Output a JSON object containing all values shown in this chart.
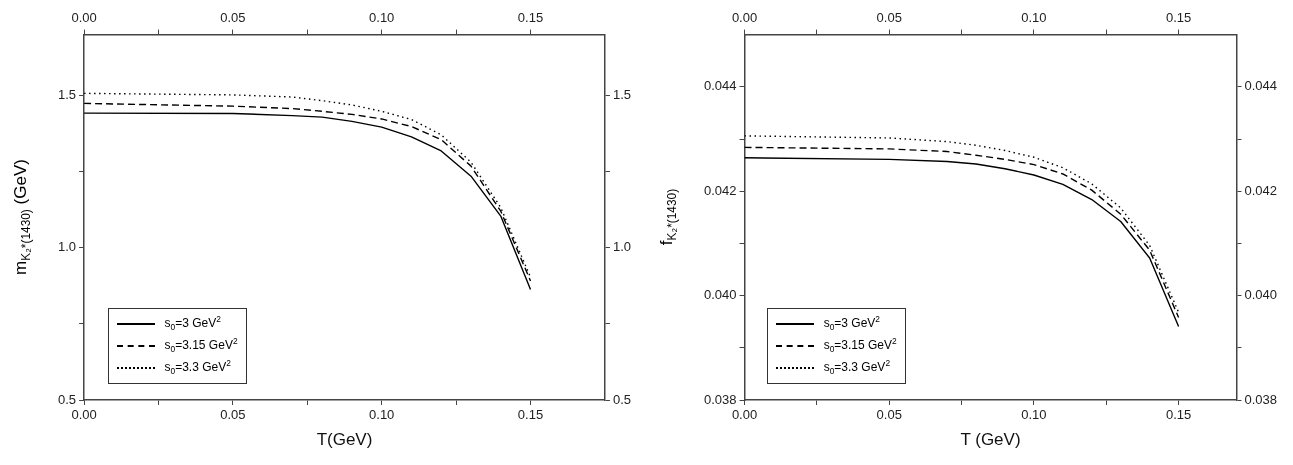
{
  "chart_data": [
    {
      "type": "line",
      "xlabel": "T(GeV)",
      "ylabel": "m$_{K₂*(1430)}$ (GeV)",
      "x": [
        0,
        0.05,
        0.07,
        0.08,
        0.09,
        0.1,
        0.11,
        0.12,
        0.13,
        0.14,
        0.15
      ],
      "xlim": [
        0,
        0.175
      ],
      "xticks": [
        {
          "value": 0,
          "label": "0.00"
        },
        {
          "value": 0.025,
          "label": null
        },
        {
          "value": 0.05,
          "label": "0.05"
        },
        {
          "value": 0.075,
          "label": null
        },
        {
          "value": 0.1,
          "label": "0.10"
        },
        {
          "value": 0.125,
          "label": null
        },
        {
          "value": 0.15,
          "label": "0.15"
        }
      ],
      "x2lim": [
        0,
        0.175
      ],
      "x2ticks": [
        {
          "value": 0,
          "label": "0.00"
        },
        {
          "value": 0.025,
          "label": null
        },
        {
          "value": 0.05,
          "label": "0.05"
        },
        {
          "value": 0.075,
          "label": null
        },
        {
          "value": 0.1,
          "label": "0.10"
        },
        {
          "value": 0.125,
          "label": null
        },
        {
          "value": 0.15,
          "label": "0.15"
        }
      ],
      "ylim": [
        0.5,
        1.7
      ],
      "yticks": [
        {
          "value": 0.5,
          "label": "0.5"
        },
        {
          "value": 0.75,
          "label": null
        },
        {
          "value": 1.0,
          "label": "1.0"
        },
        {
          "value": 1.25,
          "label": null
        },
        {
          "value": 1.5,
          "label": "1.5"
        }
      ],
      "y2lim": [
        0.5,
        1.7
      ],
      "y2ticks": [
        {
          "value": 0.5,
          "label": "0.5"
        },
        {
          "value": 0.75,
          "label": null
        },
        {
          "value": 1.0,
          "label": "1.0"
        },
        {
          "value": 1.25,
          "label": null
        },
        {
          "value": 1.5,
          "label": "1.5"
        }
      ],
      "legend": "bottom left",
      "marker": "none",
      "series": [
        {
          "name": "s$_{0}$=3 GeV$^{2}$",
          "color": "#000000",
          "line_style": "solid",
          "values": [
            1.442,
            1.441,
            1.434,
            1.429,
            1.415,
            1.396,
            1.364,
            1.318,
            1.235,
            1.104,
            0.863
          ]
        },
        {
          "name": "s$_{0}$=3.15 GeV$^{2}$",
          "color": "#000000",
          "line_style": "dashed",
          "values": [
            1.474,
            1.465,
            1.457,
            1.448,
            1.438,
            1.423,
            1.398,
            1.355,
            1.268,
            1.12,
            0.891
          ]
        },
        {
          "name": "s$_{0}$=3.3 GeV$^{2}$",
          "color": "#000000",
          "line_style": "dotted",
          "values": [
            1.507,
            1.502,
            1.495,
            1.483,
            1.469,
            1.448,
            1.421,
            1.371,
            1.281,
            1.132,
            0.903
          ]
        }
      ]
    },
    {
      "type": "line",
      "xlabel": "T (GeV)",
      "ylabel": "f$_{K₂*(1430)}$",
      "x": [
        0,
        0.05,
        0.07,
        0.08,
        0.09,
        0.1,
        0.11,
        0.12,
        0.13,
        0.14,
        0.15
      ],
      "xlim": [
        0,
        0.17
      ],
      "xticks": [
        {
          "value": 0,
          "label": "0.00"
        },
        {
          "value": 0.025,
          "label": null
        },
        {
          "value": 0.05,
          "label": "0.05"
        },
        {
          "value": 0.075,
          "label": null
        },
        {
          "value": 0.1,
          "label": "0.10"
        },
        {
          "value": 0.125,
          "label": null
        },
        {
          "value": 0.15,
          "label": "0.15"
        }
      ],
      "x2lim": [
        0,
        0.17
      ],
      "x2ticks": [
        {
          "value": 0,
          "label": "0.00"
        },
        {
          "value": 0.025,
          "label": null
        },
        {
          "value": 0.05,
          "label": "0.05"
        },
        {
          "value": 0.075,
          "label": null
        },
        {
          "value": 0.1,
          "label": "0.10"
        },
        {
          "value": 0.125,
          "label": null
        },
        {
          "value": 0.15,
          "label": "0.15"
        }
      ],
      "ylim": [
        0.038,
        0.045
      ],
      "yticks": [
        {
          "value": 0.038,
          "label": "0.038"
        },
        {
          "value": 0.039,
          "label": null
        },
        {
          "value": 0.04,
          "label": "0.040"
        },
        {
          "value": 0.041,
          "label": null
        },
        {
          "value": 0.042,
          "label": "0.042"
        },
        {
          "value": 0.043,
          "label": null
        },
        {
          "value": 0.044,
          "label": "0.044"
        }
      ],
      "y2lim": [
        0.038,
        0.045
      ],
      "y2ticks": [
        {
          "value": 0.038,
          "label": "0.038"
        },
        {
          "value": 0.039,
          "label": null
        },
        {
          "value": 0.04,
          "label": "0.040"
        },
        {
          "value": 0.041,
          "label": null
        },
        {
          "value": 0.042,
          "label": "0.042"
        },
        {
          "value": 0.043,
          "label": null
        },
        {
          "value": 0.044,
          "label": "0.044"
        }
      ],
      "legend": "bottom left",
      "marker": "none",
      "series": [
        {
          "name": "s$_{0}$=3 GeV$^{2}$",
          "color": "#000000",
          "line_style": "solid",
          "values": [
            0.04264,
            0.04261,
            0.04257,
            0.04252,
            0.04243,
            0.04231,
            0.04213,
            0.04184,
            0.04142,
            0.04072,
            0.03941
          ]
        },
        {
          "name": "s$_{0}$=3.15 GeV$^{2}$",
          "color": "#000000",
          "line_style": "dashed",
          "values": [
            0.04284,
            0.04281,
            0.04276,
            0.04269,
            0.04261,
            0.04251,
            0.04233,
            0.04202,
            0.04156,
            0.04087,
            0.03958
          ]
        },
        {
          "name": "s$_{0}$=3.3 GeV$^{2}$",
          "color": "#000000",
          "line_style": "dotted",
          "values": [
            0.04306,
            0.04302,
            0.04295,
            0.04288,
            0.04278,
            0.04265,
            0.04245,
            0.04214,
            0.04168,
            0.04096,
            0.03968
          ]
        }
      ]
    }
  ]
}
